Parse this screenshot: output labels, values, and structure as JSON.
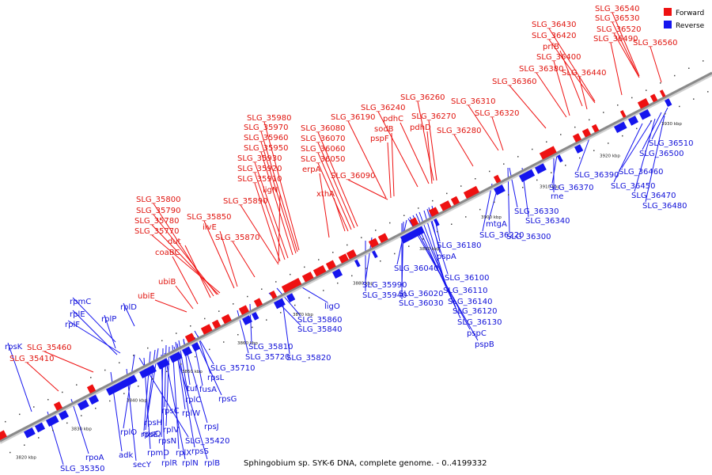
{
  "caption": "Sphingobium sp. SYK-6 DNA, complete genome. - 0..4199332",
  "legend": {
    "forward_label": "Forward",
    "reverse_label": "Reverse",
    "forward_color": "#ee1111",
    "reverse_color": "#1515ee"
  },
  "colors": {
    "forward_gene": "#ee1111",
    "reverse_gene": "#1515ee",
    "axis": "#888888"
  },
  "ticks": [
    "3820 kbp",
    "3830 kbp",
    "3840 kbp",
    "3850 kbp",
    "3860 kbp",
    "3870 kbp",
    "3880 kbp",
    "3890 kbp",
    "3900 kbp",
    "3910 kbp",
    "3920 kbp",
    "3930 kbp"
  ],
  "forward_labels": [
    "SLG_36540",
    "SLG_36530",
    "SLG_36430",
    "SLG_36520",
    "SLG_36420",
    "SLG_36490",
    "SLG_36560",
    "prfB",
    "SLG_36400",
    "SLG_36380",
    "SLG_36440",
    "SLG_36360",
    "SLG_36310",
    "SLG_36260",
    "SLG_36240",
    "SLG_36320",
    "SLG_35980",
    "SLG_36190",
    "pdhC",
    "SLG_36270",
    "SLG_35970",
    "SLG_36080",
    "sodB",
    "pdhD",
    "SLG_36280",
    "SLG_35960",
    "SLG_36070",
    "pspF",
    "SLG_35950",
    "SLG_36060",
    "SLG_35930",
    "SLG_36050",
    "SLG_35920",
    "erpA",
    "SLG_36090",
    "SLG_35910",
    "ligN",
    "xthA",
    "SLG_35800",
    "SLG_35890",
    "SLG_35790",
    "SLG_35850",
    "SLG_35780",
    "ilvE",
    "SLG_35770",
    "SLG_35870",
    "dut",
    "coaBC",
    "ubiB",
    "ubiE",
    "SLG_35460",
    "SLG_35410"
  ],
  "reverse_labels": [
    "SLG_36510",
    "SLG_36500",
    "SLG_36390",
    "SLG_36460",
    "SLG_36370",
    "SLG_36450",
    "SLG_36470",
    "rne",
    "SLG_36480",
    "SLG_36330",
    "SLG_36340",
    "mtgA",
    "SLG_36220",
    "SLG_36300",
    "SLG_36180",
    "pspA",
    "SLG_36040",
    "SLG_35990",
    "SLG_36100",
    "SLG_35940",
    "SLG_36110",
    "SLG_36020",
    "SLG_36140",
    "SLG_36030",
    "SLG_36120",
    "SLG_36130",
    "pspC",
    "pspB",
    "ligO",
    "SLG_35860",
    "SLG_35840",
    "SLG_35810",
    "SLG_35720",
    "SLG_35820",
    "SLG_35710",
    "rpmC",
    "rplD",
    "rplE",
    "rplP",
    "rplF",
    "rpsL",
    "rpsK",
    "fusA",
    "tuf",
    "rpsG",
    "rplC",
    "rplW",
    "rpsC",
    "rpsJ",
    "rplO",
    "rpsH",
    "rpsQ",
    "rplV",
    "SLG_35420",
    "rpsE",
    "rpsN",
    "rpmD",
    "rplX",
    "rpsS",
    "rpoA",
    "adk",
    "rplR",
    "rplN",
    "rplB",
    "secY",
    "SLG_35350"
  ]
}
